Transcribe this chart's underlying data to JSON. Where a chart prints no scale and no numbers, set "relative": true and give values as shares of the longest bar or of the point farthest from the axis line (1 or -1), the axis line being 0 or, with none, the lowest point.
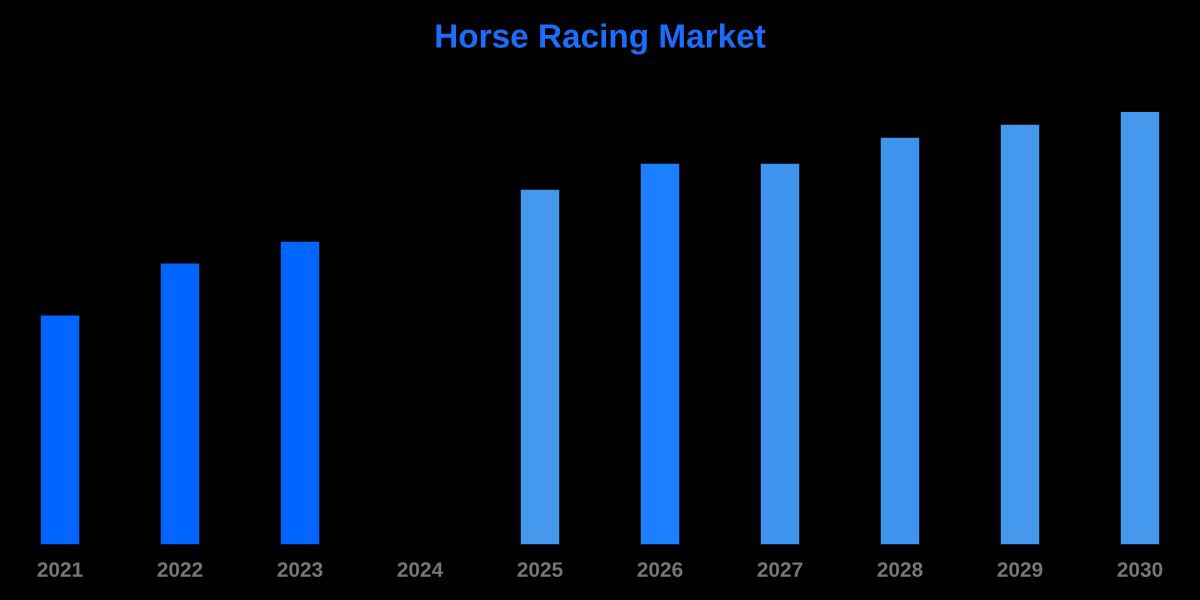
{
  "chart_data": {
    "type": "bar",
    "title": "Horse Racing Market",
    "relative": true,
    "categories": [
      "2021",
      "2022",
      "2023",
      "2024",
      "2025",
      "2026",
      "2027",
      "2028",
      "2029",
      "2030"
    ],
    "values": [
      0.53,
      0.65,
      0.7,
      null,
      0.82,
      0.88,
      0.88,
      0.94,
      0.97,
      1
    ],
    "colors": [
      "#0066ff",
      "#0066ff",
      "#0066ff",
      "#0066ff",
      "#4499ee",
      "#1a80ff",
      "#3d94ee",
      "#3d94ee",
      "#4499ee",
      "#4499ee"
    ],
    "grid": false,
    "legend": false
  }
}
